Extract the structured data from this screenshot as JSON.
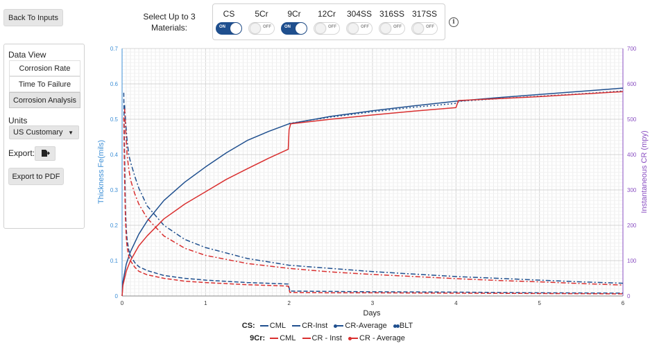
{
  "header": {
    "back_label": "Back To Inputs",
    "select_label_line1": "Select Up to 3",
    "select_label_line2": "Materials:",
    "info_glyph": "i"
  },
  "materials": [
    {
      "name": "CS",
      "state": "ON"
    },
    {
      "name": "5Cr",
      "state": "OFF"
    },
    {
      "name": "9Cr",
      "state": "ON"
    },
    {
      "name": "12Cr",
      "state": "OFF"
    },
    {
      "name": "304SS",
      "state": "OFF"
    },
    {
      "name": "316SS",
      "state": "OFF"
    },
    {
      "name": "317SS",
      "state": "OFF"
    }
  ],
  "sidebar": {
    "data_view_title": "Data View",
    "views": [
      "Corrosion Rate",
      "Time To Failure",
      "Corrosion Analysis"
    ],
    "active_view": "Corrosion Analysis",
    "units_title": "Units",
    "units_value": "US Customary",
    "export_label": "Export:",
    "export_pdf_label": "Export to PDF"
  },
  "legend": {
    "cs_label": "CS:",
    "cs_items": [
      "CML",
      "CR-Inst",
      "CR-Average",
      "BLT"
    ],
    "cr9_label": "9Cr:",
    "cr9_items": [
      "CML",
      "CR - Inst",
      "CR - Average"
    ]
  },
  "colors": {
    "cs": "#1f4f8e",
    "cr9": "#d92f2f",
    "left_axis": "#3d8fd6",
    "right_axis": "#8a4fc2"
  },
  "chart_data": {
    "type": "line",
    "xlabel": "Days",
    "ylabel_left": "Thickness Fe(mils)",
    "ylabel_right": "Instantaneous CR (mpy)",
    "xlim": [
      0,
      6
    ],
    "ylim_left": [
      0,
      0.7
    ],
    "ylim_right": [
      0,
      700
    ],
    "x_ticks": [
      "0",
      "1",
      "2",
      "3",
      "4",
      "5",
      "6"
    ],
    "y_left_ticks": [
      "0",
      "0.1",
      "0.2",
      "0.3",
      "0.4",
      "0.5",
      "0.6",
      "0.7"
    ],
    "y_right_ticks": [
      "0",
      "100",
      "200",
      "300",
      "400",
      "500",
      "600",
      "700"
    ],
    "series": [
      {
        "name": "CS CML",
        "material": "CS",
        "axis": "left",
        "style": "solid",
        "x": [
          0,
          0.01,
          0.05,
          0.1,
          0.2,
          0.3,
          0.5,
          0.75,
          1.0,
          1.25,
          1.5,
          1.75,
          2.0,
          2.5,
          3.0,
          3.5,
          4.0,
          4.5,
          5.0,
          5.5,
          6.0
        ],
        "y": [
          0,
          0.04,
          0.09,
          0.125,
          0.175,
          0.212,
          0.27,
          0.322,
          0.365,
          0.405,
          0.44,
          0.465,
          0.487,
          0.508,
          0.524,
          0.538,
          0.551,
          0.561,
          0.57,
          0.579,
          0.588
        ]
      },
      {
        "name": "CS CR-Inst",
        "material": "CS",
        "axis": "right",
        "style": "dashed",
        "x": [
          0.02,
          0.03,
          0.04,
          0.05,
          0.06,
          0.08,
          0.1,
          0.15,
          0.2,
          0.3,
          0.5,
          0.75,
          1.0,
          1.5,
          1.99,
          2.01,
          2.5,
          3.0,
          4.0,
          5.0,
          6.0
        ],
        "y": [
          575,
          400,
          250,
          190,
          160,
          130,
          115,
          95,
          83,
          72,
          58,
          50,
          45,
          38,
          34,
          14,
          13,
          12,
          11,
          9,
          8
        ]
      },
      {
        "name": "CS CR-Average",
        "material": "CS",
        "axis": "right",
        "style": "dashdot",
        "x": [
          0.03,
          0.04,
          0.06,
          0.08,
          0.1,
          0.15,
          0.2,
          0.3,
          0.5,
          0.75,
          1.0,
          1.5,
          2.0,
          2.5,
          3.0,
          3.5,
          4.0,
          4.5,
          5.0,
          5.5,
          6.0
        ],
        "y": [
          540,
          500,
          440,
          400,
          380,
          340,
          305,
          255,
          200,
          160,
          137,
          106,
          87,
          78,
          69,
          62,
          55,
          50,
          45,
          40,
          36
        ]
      },
      {
        "name": "CS BLT",
        "material": "CS",
        "axis": "right",
        "style": "dotted",
        "x": [
          2.0,
          2.5,
          3.0,
          3.5,
          4.0,
          4.05,
          4.5,
          5.0,
          5.5,
          6.0
        ],
        "y": [
          488,
          506,
          521,
          534,
          545,
          551,
          558,
          565,
          572,
          580
        ]
      },
      {
        "name": "9Cr CML",
        "material": "9Cr",
        "axis": "left",
        "style": "solid",
        "x": [
          0,
          0.01,
          0.05,
          0.1,
          0.2,
          0.3,
          0.5,
          0.75,
          1.0,
          1.25,
          1.5,
          1.75,
          1.99,
          2.0,
          2.02,
          2.5,
          3.0,
          3.5,
          4.0,
          4.03,
          4.5,
          5.0,
          5.5,
          6.0
        ],
        "y": [
          0,
          0.03,
          0.07,
          0.1,
          0.142,
          0.17,
          0.218,
          0.26,
          0.295,
          0.33,
          0.36,
          0.389,
          0.415,
          0.47,
          0.487,
          0.5,
          0.512,
          0.523,
          0.533,
          0.553,
          0.558,
          0.564,
          0.571,
          0.578
        ]
      },
      {
        "name": "9Cr CR - Inst",
        "material": "9Cr",
        "axis": "right",
        "style": "dashed",
        "x": [
          0.02,
          0.03,
          0.04,
          0.05,
          0.06,
          0.08,
          0.1,
          0.15,
          0.2,
          0.3,
          0.5,
          0.75,
          1.0,
          1.5,
          1.99,
          2.01,
          2.5,
          3.0,
          4.0,
          5.0,
          6.0
        ],
        "y": [
          505,
          330,
          220,
          165,
          140,
          112,
          100,
          82,
          70,
          60,
          50,
          42,
          38,
          32,
          28,
          10,
          9,
          9,
          8,
          7,
          6
        ]
      },
      {
        "name": "9Cr CR - Average",
        "material": "9Cr",
        "axis": "right",
        "style": "dashdot",
        "x": [
          0.03,
          0.04,
          0.06,
          0.08,
          0.1,
          0.15,
          0.2,
          0.3,
          0.5,
          0.75,
          1.0,
          1.5,
          2.0,
          2.5,
          3.0,
          3.5,
          4.0,
          4.5,
          5.0,
          5.5,
          6.0
        ],
        "y": [
          530,
          480,
          400,
          360,
          330,
          290,
          260,
          220,
          170,
          135,
          115,
          92,
          78,
          68,
          61,
          55,
          49,
          44,
          40,
          35,
          31
        ]
      }
    ]
  }
}
